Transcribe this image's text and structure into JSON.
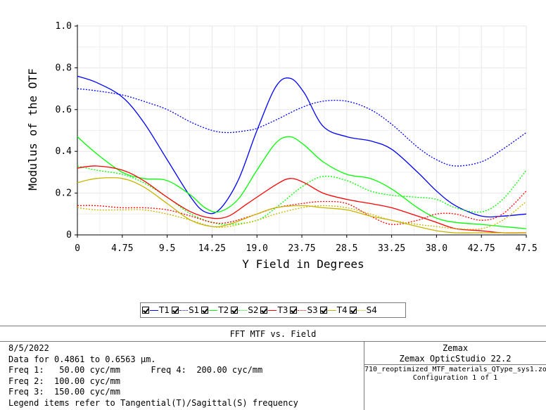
{
  "chart_data": {
    "type": "line",
    "title": "FFT MTF vs. Field",
    "xlabel": "Y Field in Degrees",
    "ylabel": "Modulus of the OTF",
    "xlim": [
      0,
      47.5
    ],
    "ylim": [
      0,
      1.0
    ],
    "x_ticks": [
      "0",
      "4.75",
      "9.5",
      "14.25",
      "19.0",
      "23.75",
      "28.5",
      "33.25",
      "38.0",
      "42.75",
      "47.5"
    ],
    "y_ticks": [
      "0",
      "0.2",
      "0.4",
      "0.6",
      "0.8",
      "1.0"
    ],
    "grid": true,
    "x": [
      0,
      4.75,
      9.5,
      14.25,
      19.0,
      23.75,
      28.5,
      33.25,
      38.0,
      42.75,
      47.5
    ],
    "series": [
      {
        "name": "T1",
        "color": "#0000ff",
        "style": "solid",
        "x": [
          0,
          2,
          4.75,
          7,
          9.5,
          12,
          13.5,
          15,
          17,
          19,
          21,
          22.5,
          24,
          26,
          28.5,
          31,
          33.25,
          36,
          38,
          40,
          42.75,
          45,
          47.5
        ],
        "values": [
          0.76,
          0.73,
          0.66,
          0.54,
          0.36,
          0.18,
          0.11,
          0.12,
          0.26,
          0.5,
          0.71,
          0.75,
          0.68,
          0.52,
          0.47,
          0.45,
          0.41,
          0.3,
          0.21,
          0.14,
          0.09,
          0.09,
          0.1
        ]
      },
      {
        "name": "S1",
        "color": "#0000ff",
        "style": "dotted",
        "x": [
          0,
          2,
          4.75,
          7,
          9.5,
          12,
          14.25,
          16,
          18,
          19,
          21,
          23.75,
          26,
          28.5,
          31,
          33.25,
          36,
          38,
          40,
          42.75,
          45,
          47.5
        ],
        "values": [
          0.7,
          0.69,
          0.67,
          0.64,
          0.6,
          0.54,
          0.5,
          0.49,
          0.5,
          0.51,
          0.55,
          0.61,
          0.64,
          0.64,
          0.6,
          0.53,
          0.42,
          0.36,
          0.33,
          0.35,
          0.41,
          0.49
        ]
      },
      {
        "name": "T2",
        "color": "#00ff00",
        "style": "solid",
        "x": [
          0,
          2,
          4.75,
          7,
          9.5,
          12,
          13.5,
          15,
          17,
          19,
          21,
          22.5,
          24,
          26,
          28.5,
          31,
          33.25,
          36,
          38,
          40,
          42.75,
          45,
          47.5
        ],
        "values": [
          0.47,
          0.39,
          0.3,
          0.27,
          0.26,
          0.19,
          0.13,
          0.11,
          0.17,
          0.31,
          0.44,
          0.47,
          0.43,
          0.35,
          0.29,
          0.27,
          0.22,
          0.13,
          0.08,
          0.06,
          0.05,
          0.04,
          0.03
        ]
      },
      {
        "name": "S2",
        "color": "#00ff00",
        "style": "dotted",
        "x": [
          0,
          2,
          4.75,
          7,
          9.5,
          12,
          14.25,
          16,
          19,
          21,
          23.75,
          26,
          28.5,
          31,
          33.25,
          36,
          38,
          40,
          42.75,
          45,
          47.5
        ],
        "values": [
          0.33,
          0.31,
          0.29,
          0.25,
          0.18,
          0.1,
          0.06,
          0.05,
          0.07,
          0.13,
          0.23,
          0.28,
          0.26,
          0.21,
          0.19,
          0.18,
          0.17,
          0.13,
          0.11,
          0.17,
          0.31
        ]
      },
      {
        "name": "T3",
        "color": "#ff0000",
        "style": "solid",
        "x": [
          0,
          2,
          4.75,
          7,
          9.5,
          12,
          14.25,
          16,
          18,
          21,
          22.5,
          24,
          26,
          28.5,
          31,
          33.25,
          36,
          38,
          40,
          42.75,
          45,
          47.5
        ],
        "values": [
          0.32,
          0.33,
          0.31,
          0.26,
          0.18,
          0.11,
          0.08,
          0.09,
          0.15,
          0.24,
          0.27,
          0.25,
          0.2,
          0.17,
          0.15,
          0.13,
          0.09,
          0.06,
          0.03,
          0.02,
          0.01,
          0.01
        ]
      },
      {
        "name": "S3",
        "color": "#ff0000",
        "style": "dotted",
        "x": [
          0,
          2,
          4.75,
          7,
          9.5,
          12,
          14.25,
          16,
          19,
          21,
          23.75,
          26,
          28.5,
          31,
          33.25,
          36,
          38,
          40,
          42.75,
          45,
          47.5
        ],
        "values": [
          0.14,
          0.14,
          0.13,
          0.13,
          0.12,
          0.09,
          0.06,
          0.06,
          0.1,
          0.13,
          0.15,
          0.16,
          0.15,
          0.09,
          0.05,
          0.07,
          0.1,
          0.1,
          0.07,
          0.1,
          0.21
        ]
      },
      {
        "name": "T4",
        "color": "#c8b400",
        "style": "solid",
        "x": [
          0,
          2,
          4.75,
          7,
          9.5,
          12,
          14.25,
          16,
          19,
          21,
          23.75,
          26,
          28.5,
          31,
          33.25,
          36,
          38,
          40,
          42.75,
          45,
          47.5
        ],
        "values": [
          0.25,
          0.27,
          0.27,
          0.23,
          0.15,
          0.07,
          0.04,
          0.05,
          0.1,
          0.13,
          0.14,
          0.13,
          0.12,
          0.09,
          0.07,
          0.04,
          0.02,
          0.01,
          0.01,
          0.01,
          0.01
        ]
      },
      {
        "name": "S4",
        "color": "#c8b400",
        "style": "dotted",
        "x": [
          0,
          2,
          4.75,
          7,
          9.5,
          12,
          14.25,
          16,
          19,
          21,
          23.75,
          26,
          28.5,
          31,
          33.25,
          36,
          38,
          40,
          42.75,
          45,
          47.5
        ],
        "values": [
          0.13,
          0.12,
          0.12,
          0.12,
          0.1,
          0.07,
          0.04,
          0.04,
          0.07,
          0.1,
          0.13,
          0.14,
          0.13,
          0.1,
          0.07,
          0.05,
          0.04,
          0.03,
          0.03,
          0.07,
          0.16
        ]
      }
    ]
  },
  "legend": {
    "items": [
      {
        "label": "T1",
        "color": "#0000ff",
        "style": "solid"
      },
      {
        "label": "S1",
        "color": "#0000ff",
        "style": "dotted"
      },
      {
        "label": "T2",
        "color": "#00ff00",
        "style": "solid"
      },
      {
        "label": "S2",
        "color": "#00ff00",
        "style": "dotted"
      },
      {
        "label": "T3",
        "color": "#ff0000",
        "style": "solid"
      },
      {
        "label": "S3",
        "color": "#ff0000",
        "style": "dotted"
      },
      {
        "label": "T4",
        "color": "#c8b400",
        "style": "solid"
      },
      {
        "label": "S4",
        "color": "#c8b400",
        "style": "dotted"
      }
    ]
  },
  "info": {
    "title": "FFT MTF vs. Field",
    "date": "8/5/2022",
    "data_line": "Data for 0.4861 to 0.6563 µm.",
    "freq1": "Freq 1:   50.00 cyc/mm",
    "freq4": "Freq 4:  200.00 cyc/mm",
    "freq2": "Freq 2:  100.00 cyc/mm",
    "freq3": "Freq 3:  150.00 cyc/mm",
    "legend_note": "Legend items refer to Tangential(T)/Sagittal(S) frequency",
    "company": "Zemax",
    "product": "Zemax OpticStudio 22.2",
    "file": "710_reoptimized_MTF_materials_QType_sys1.zos",
    "config": "Configuration 1 of 1"
  }
}
